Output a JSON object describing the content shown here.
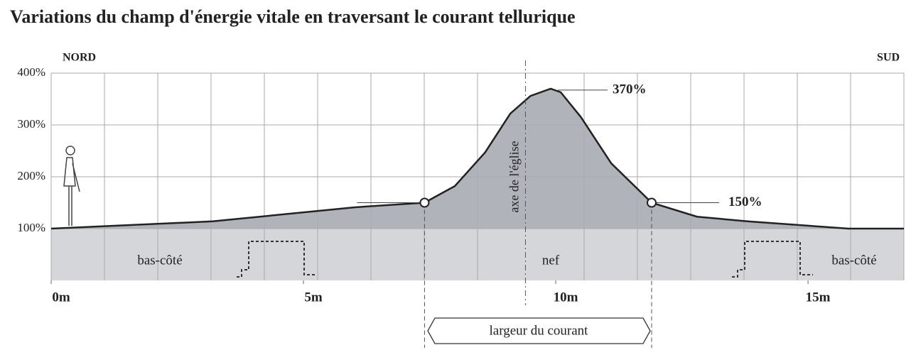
{
  "chart_data": {
    "type": "area",
    "title": "Variations du champ d'énergie vitale en traversant le courant tellurique",
    "x": [
      0,
      3.2,
      6.0,
      7.4,
      8.0,
      8.6,
      9.1,
      9.5,
      9.9,
      10.1,
      10.5,
      11.1,
      11.9,
      12.8,
      13.8,
      15.8,
      16.9
    ],
    "values": [
      100,
      114,
      141,
      150,
      182,
      247,
      322,
      356,
      370,
      363,
      315,
      226,
      150,
      123,
      114,
      100,
      100
    ],
    "color": "#a9abb2",
    "markers": {
      "x": [
        7.4,
        11.9
      ],
      "values": [
        150,
        150
      ]
    },
    "xlim": [
      0,
      16.9
    ],
    "xticks": [
      {
        "value": 0,
        "label": "0m"
      },
      {
        "value": 5,
        "label": "5m"
      },
      {
        "value": 10,
        "label": "10m"
      },
      {
        "value": 15,
        "label": "15m"
      }
    ],
    "ylim": [
      0,
      400
    ],
    "yticks": [
      {
        "value": 100,
        "label": "100%"
      },
      {
        "value": 200,
        "label": "200%"
      },
      {
        "value": 300,
        "label": "300%"
      },
      {
        "value": 400,
        "label": "400%"
      }
    ],
    "grid": true,
    "annotations": [
      {
        "text": "370%",
        "value": 370
      },
      {
        "text": "150%",
        "value": 150
      }
    ],
    "axis_line": {
      "text": "axe de l'église",
      "x": 9.4
    },
    "labels": {
      "north": "NORD",
      "south": "SUD",
      "aisle_left": "bas-côté",
      "nave": "nef",
      "aisle_right": "bas-côté",
      "width": "largeur du courant"
    }
  }
}
